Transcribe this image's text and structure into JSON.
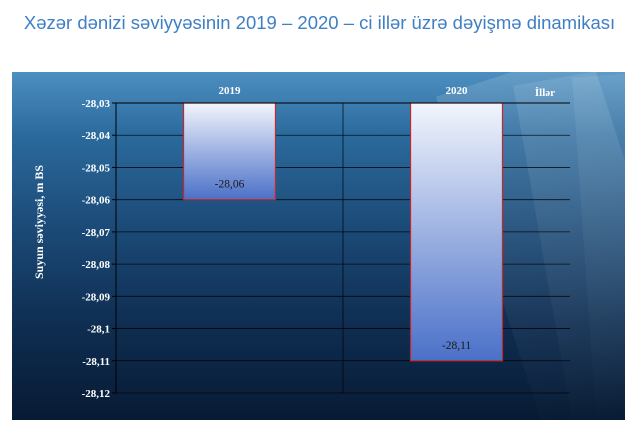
{
  "title": "Xəzər dənizi səviyyəsinin 2019 – 2020 – ci illər üzrə dəyişmə dinamikası",
  "chart_data": {
    "type": "bar",
    "title": "Xəzər dənizi səviyyəsinin 2019 – 2020 – ci illər üzrə dəyişmə dinamikası",
    "xlabel": "İllər",
    "ylabel": "Suyun səviyyəsi,  m BS",
    "categories": [
      "2019",
      "2020"
    ],
    "values": [
      -28.06,
      -28.11
    ],
    "data_labels": [
      "-28,06",
      "-28,11"
    ],
    "ylim": [
      -28.12,
      -28.03
    ],
    "yticks": [
      "-28,03",
      "-28,04",
      "-28,05",
      "-28,06",
      "-28,07",
      "-28,08",
      "-28,09",
      "-28,1",
      "-28,11",
      "-28,12"
    ],
    "x_axis_position": "top",
    "grid": true,
    "bar_border_color": "#c0282d",
    "bar_fill_top": "#f2f5fc",
    "bar_fill_bottom": "#4a70c8"
  }
}
